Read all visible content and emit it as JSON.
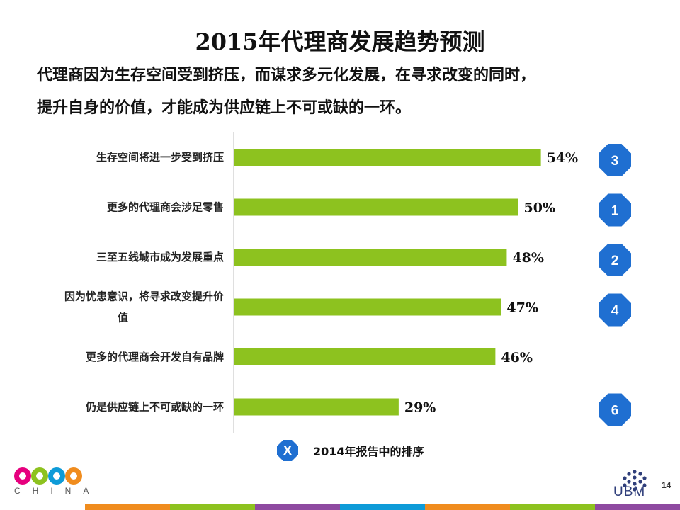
{
  "title": "2015年代理商发展趋势预测",
  "subtitle_lines": [
    "代理商因为生存空间受到挤压，而谋求多元化发展，在寻求改变的同时，",
    "提升自身的价值，才能成为供应链上不可或缺的一环。"
  ],
  "chart_data": {
    "type": "bar",
    "orientation": "horizontal",
    "categories": [
      [
        "生存空间将进一步受到挤压"
      ],
      [
        "更多的代理商会涉足零售"
      ],
      [
        "三至五线城市成为发展重点"
      ],
      [
        "因为忧患意识，将寻求改变提升价",
        "值"
      ],
      [
        "更多的代理商会开发自有品牌"
      ],
      [
        "仍是供应链上不可或缺的一环"
      ]
    ],
    "values": [
      54,
      50,
      48,
      47,
      46,
      29
    ],
    "value_labels": [
      "54%",
      "50%",
      "48%",
      "47%",
      "46%",
      "29%"
    ],
    "ranks_2014": [
      "3",
      "1",
      "2",
      "4",
      "",
      "6"
    ],
    "bar_color": "#8dc21f",
    "rank_marker_color": "#1f6fd1",
    "xlim": [
      0,
      100
    ],
    "grid": false
  },
  "legend": {
    "marker_label": "X",
    "text": "2014年报告中的排序"
  },
  "logos": {
    "cbme_sub": "CHINA",
    "ubm": "UBM"
  },
  "page_number": "14",
  "footer_colors": [
    "#f08c1e",
    "#8dc21f",
    "#8e4aa0",
    "#0e9bd8",
    "#f08c1e",
    "#8dc21f",
    "#8e4aa0"
  ]
}
